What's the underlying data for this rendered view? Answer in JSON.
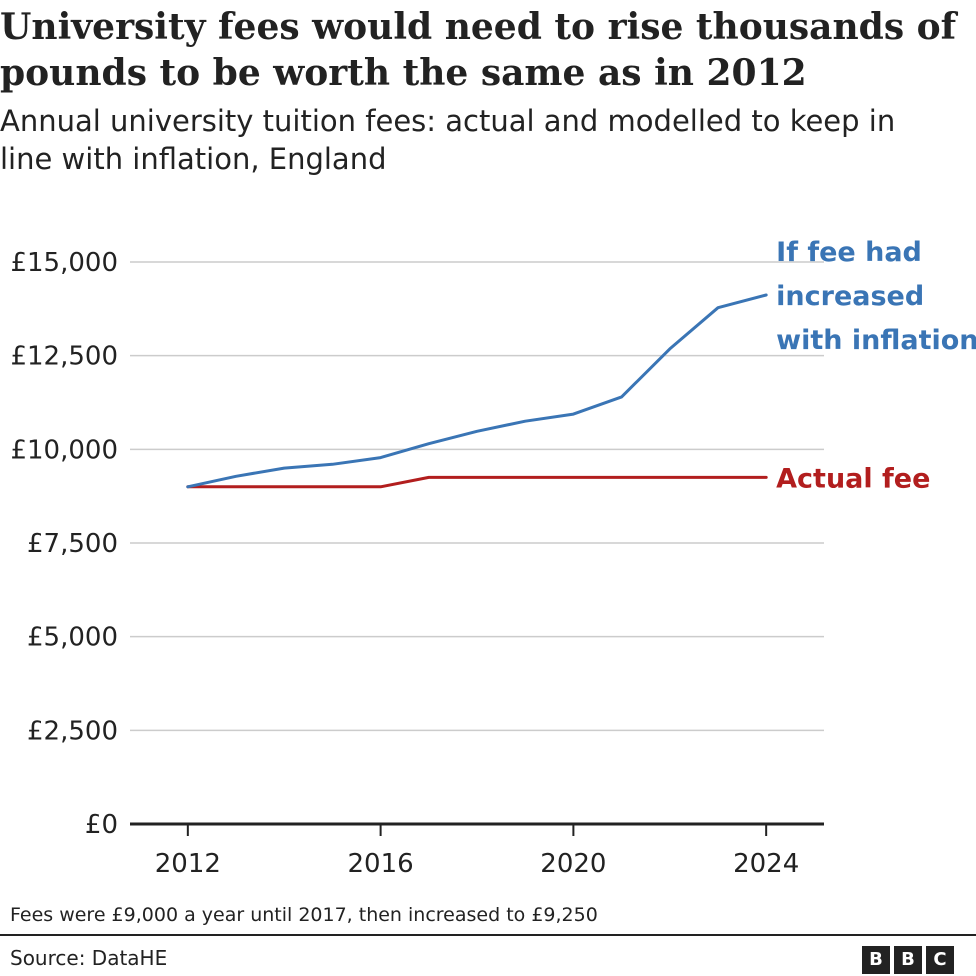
{
  "logo": {
    "letters": [
      "B",
      "B",
      "C"
    ]
  },
  "note": "Fees were £9,000 a year until 2017, then increased to £9,250",
  "source": "Source: DataHE",
  "chart_data": {
    "type": "line",
    "title": "University fees would need to rise thousands of pounds to be worth the same as in 2012",
    "subtitle": "Annual university tuition fees: actual and modelled to keep in line with inflation, England",
    "xlabel": "",
    "ylabel": "",
    "xlim": [
      2010.8,
      2025.2
    ],
    "ylim": [
      0,
      15000
    ],
    "x_ticks": [
      2012,
      2016,
      2020,
      2024
    ],
    "y_ticks": [
      {
        "value": 0,
        "label": "£0"
      },
      {
        "value": 2500,
        "label": "£2,500"
      },
      {
        "value": 5000,
        "label": "£5,000"
      },
      {
        "value": 7500,
        "label": "£7,500"
      },
      {
        "value": 10000,
        "label": "£10,000"
      },
      {
        "value": 12500,
        "label": "£12,500"
      },
      {
        "value": 15000,
        "label": "£15,000"
      }
    ],
    "grid": "horizontal",
    "legend": "direct labels at line ends",
    "series": [
      {
        "name": "If fee had increased with inflation",
        "label_lines": [
          "If fee had",
          "increased",
          "with inflation"
        ],
        "color": "#3a75b5",
        "x": [
          2012,
          2013,
          2014,
          2015,
          2016,
          2017,
          2018,
          2019,
          2020,
          2021,
          2022,
          2023,
          2024
        ],
        "y": [
          9000,
          9280,
          9500,
          9600,
          9780,
          10150,
          10480,
          10750,
          10940,
          11400,
          12680,
          13780,
          14120
        ]
      },
      {
        "name": "Actual fee",
        "label_lines": [
          "Actual fee"
        ],
        "color": "#b21e1e",
        "x": [
          2012,
          2013,
          2014,
          2015,
          2016,
          2017,
          2018,
          2019,
          2020,
          2021,
          2022,
          2023,
          2024
        ],
        "y": [
          9000,
          9000,
          9000,
          9000,
          9000,
          9250,
          9250,
          9250,
          9250,
          9250,
          9250,
          9250,
          9250
        ]
      }
    ]
  }
}
